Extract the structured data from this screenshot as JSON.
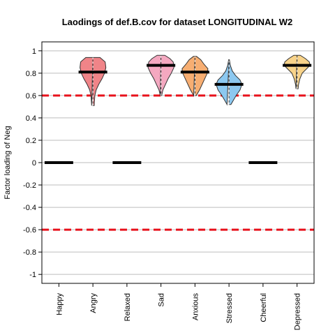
{
  "chart_data": {
    "type": "violin",
    "title": "Laodings of def.B.cov for dataset LONGITUDINAL W2",
    "xlabel": "",
    "ylabel": "Factor loading of Neg",
    "ylim": [
      -1.08,
      1.08
    ],
    "yticks": [
      1,
      0.8,
      0.6,
      0.4,
      0.2,
      0,
      -0.2,
      -0.4,
      -0.6,
      -0.8,
      -1
    ],
    "ytick_labels": [
      "1",
      "0.8",
      "0.6",
      "0.4",
      "0.2",
      "0",
      "-0.2",
      "-0.4",
      "-0.6",
      "-0.8",
      "-1"
    ],
    "grid": true,
    "threshold_lines": [
      0.6,
      -0.6
    ],
    "threshold_color": "#e8111b",
    "categories": [
      "Happy",
      "Angry",
      "Relaxed",
      "Sad",
      "Anxious",
      "Stressed",
      "Cheerful",
      "Depressed"
    ],
    "items": [
      {
        "label": "Happy",
        "loading": 0,
        "violin": null
      },
      {
        "label": "Angry",
        "loading": 0.81,
        "color": "#f08488",
        "violin": {
          "min": 0.51,
          "max": 0.94,
          "profile": [
            [
              0.51,
              0.1
            ],
            [
              0.55,
              0.12
            ],
            [
              0.6,
              0.15
            ],
            [
              0.65,
              0.25
            ],
            [
              0.7,
              0.45
            ],
            [
              0.75,
              0.7
            ],
            [
              0.8,
              0.9
            ],
            [
              0.85,
              1.0
            ],
            [
              0.9,
              0.95
            ],
            [
              0.94,
              0.55
            ]
          ]
        }
      },
      {
        "label": "Relaxed",
        "loading": 0,
        "violin": null
      },
      {
        "label": "Sad",
        "loading": 0.87,
        "color": "#f4a8c0",
        "violin": {
          "min": 0.6,
          "max": 0.96,
          "profile": [
            [
              0.6,
              0.05
            ],
            [
              0.65,
              0.15
            ],
            [
              0.7,
              0.35
            ],
            [
              0.75,
              0.55
            ],
            [
              0.8,
              0.8
            ],
            [
              0.85,
              1.0
            ],
            [
              0.9,
              0.95
            ],
            [
              0.93,
              0.7
            ],
            [
              0.96,
              0.3
            ]
          ]
        }
      },
      {
        "label": "Anxious",
        "loading": 0.81,
        "color": "#f7ae72",
        "violin": {
          "min": 0.6,
          "max": 0.95,
          "profile": [
            [
              0.6,
              0.1
            ],
            [
              0.65,
              0.35
            ],
            [
              0.7,
              0.55
            ],
            [
              0.75,
              0.75
            ],
            [
              0.8,
              0.95
            ],
            [
              0.84,
              1.0
            ],
            [
              0.88,
              0.7
            ],
            [
              0.92,
              0.45
            ],
            [
              0.95,
              0.12
            ]
          ]
        }
      },
      {
        "label": "Stressed",
        "loading": 0.7,
        "color": "#8cc8f0",
        "violin": {
          "min": 0.52,
          "max": 0.92,
          "profile": [
            [
              0.52,
              0.15
            ],
            [
              0.55,
              0.3
            ],
            [
              0.6,
              0.55
            ],
            [
              0.65,
              0.85
            ],
            [
              0.7,
              1.0
            ],
            [
              0.74,
              0.85
            ],
            [
              0.78,
              0.5
            ],
            [
              0.82,
              0.25
            ],
            [
              0.87,
              0.1
            ],
            [
              0.92,
              0.03
            ]
          ]
        }
      },
      {
        "label": "Cheerful",
        "loading": 0,
        "violin": null
      },
      {
        "label": "Depressed",
        "loading": 0.87,
        "color": "#f8d38a",
        "violin": {
          "min": 0.66,
          "max": 0.96,
          "profile": [
            [
              0.66,
              0.08
            ],
            [
              0.7,
              0.12
            ],
            [
              0.75,
              0.22
            ],
            [
              0.8,
              0.4
            ],
            [
              0.84,
              0.75
            ],
            [
              0.87,
              1.0
            ],
            [
              0.9,
              0.95
            ],
            [
              0.93,
              0.65
            ],
            [
              0.96,
              0.25
            ]
          ]
        }
      }
    ]
  }
}
